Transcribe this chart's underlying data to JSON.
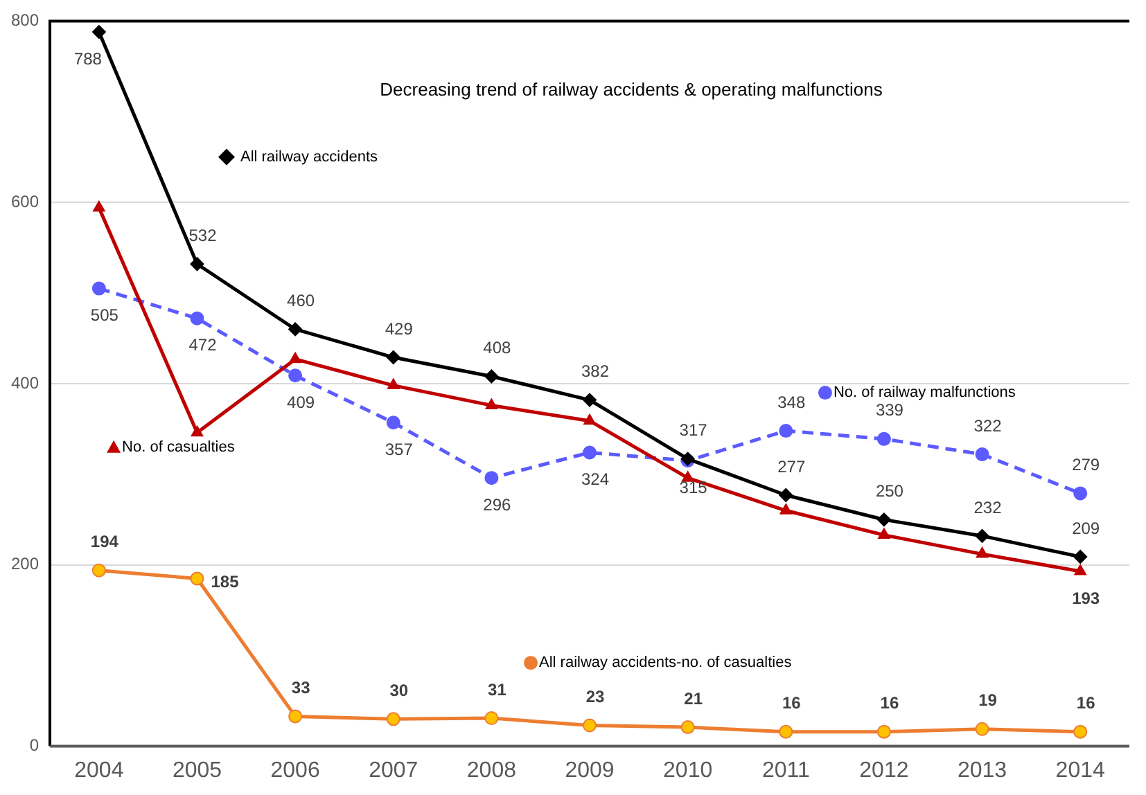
{
  "chart_data": {
    "type": "line",
    "title": "Decreasing trend of railway accidents & operating malfunctions",
    "categories": [
      "2004",
      "2005",
      "2006",
      "2007",
      "2008",
      "2009",
      "2010",
      "2011",
      "2012",
      "2013",
      "2014"
    ],
    "series": [
      {
        "name": "All railway accidents",
        "color": "#000000",
        "marker": "diamond",
        "values": [
          788,
          532,
          460,
          429,
          408,
          382,
          317,
          277,
          250,
          232,
          209
        ],
        "value_labels": [
          "788",
          "532",
          "460",
          "429",
          "408",
          "382",
          "317",
          "277",
          "250",
          "232",
          "209"
        ]
      },
      {
        "name": "No. of casualties",
        "color": "#c00000",
        "marker": "triangle",
        "values": [
          594,
          346,
          427,
          398,
          376,
          359,
          296,
          260,
          233,
          212,
          193
        ],
        "value_labels": [
          null,
          null,
          null,
          null,
          null,
          null,
          null,
          null,
          null,
          null,
          "193"
        ]
      },
      {
        "name": "No. of railway malfunctions",
        "color": "#5b5bff",
        "marker": "circle",
        "line_style": "dashed",
        "values": [
          505,
          472,
          409,
          357,
          296,
          324,
          315,
          348,
          339,
          322,
          279
        ],
        "value_labels": [
          "505",
          "472",
          "409",
          "357",
          "296",
          "324",
          "315",
          "348",
          "339",
          "322",
          "279"
        ]
      },
      {
        "name": "All railway accidents-no. of casualties",
        "color": "#ed7d31",
        "marker": "circle",
        "values": [
          194,
          185,
          33,
          30,
          31,
          23,
          21,
          16,
          16,
          19,
          16
        ],
        "value_labels": [
          "194",
          "185",
          "33",
          "30",
          "31",
          "23",
          "21",
          "16",
          "16",
          "19",
          "16"
        ]
      }
    ],
    "ylim": [
      0,
      800
    ],
    "yticks": [
      0,
      200,
      400,
      600,
      800
    ],
    "grid": "y",
    "legend": "bottom left"
  }
}
